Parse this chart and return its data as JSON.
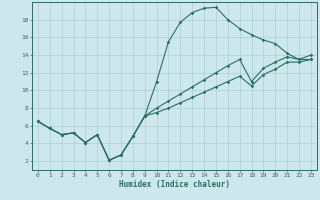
{
  "xlabel": "Humidex (Indice chaleur)",
  "xlim": [
    -0.5,
    23.5
  ],
  "ylim": [
    1.0,
    20.0
  ],
  "xticks": [
    0,
    1,
    2,
    3,
    4,
    5,
    6,
    7,
    8,
    9,
    10,
    11,
    12,
    13,
    14,
    15,
    16,
    17,
    18,
    19,
    20,
    21,
    22,
    23
  ],
  "yticks": [
    2,
    4,
    6,
    8,
    10,
    12,
    14,
    16,
    18
  ],
  "bg_color": "#cce8ed",
  "grid_color": "#aacfd5",
  "line_color": "#2a6e65",
  "line1_x": [
    0,
    1,
    2,
    3,
    4,
    5,
    6,
    7,
    8,
    9,
    10,
    11,
    12,
    13,
    14,
    15,
    16,
    17,
    18,
    19,
    20,
    21,
    22,
    23
  ],
  "line1_y": [
    6.5,
    5.7,
    5.0,
    5.2,
    4.1,
    5.0,
    2.1,
    2.7,
    4.8,
    7.1,
    11.0,
    15.5,
    17.7,
    18.8,
    19.3,
    19.4,
    18.0,
    17.0,
    16.3,
    15.7,
    15.3,
    14.2,
    13.5,
    13.5
  ],
  "line2_x": [
    0,
    1,
    2,
    3,
    4,
    5,
    6,
    7,
    8,
    9,
    10,
    11,
    12,
    13,
    14,
    15,
    16,
    17,
    18,
    19,
    20,
    21,
    22,
    23
  ],
  "line2_y": [
    6.5,
    5.7,
    5.0,
    5.2,
    4.1,
    5.0,
    2.1,
    2.7,
    4.8,
    7.1,
    8.0,
    8.8,
    9.6,
    10.4,
    11.2,
    12.0,
    12.8,
    13.5,
    11.0,
    12.5,
    13.2,
    13.8,
    13.5,
    14.0
  ],
  "line3_x": [
    0,
    1,
    2,
    3,
    4,
    5,
    6,
    7,
    8,
    9,
    10,
    11,
    12,
    13,
    14,
    15,
    16,
    17,
    18,
    19,
    20,
    21,
    22,
    23
  ],
  "line3_y": [
    6.5,
    5.7,
    5.0,
    5.2,
    4.1,
    5.0,
    2.1,
    2.7,
    4.8,
    7.1,
    7.5,
    8.0,
    8.6,
    9.2,
    9.8,
    10.4,
    11.0,
    11.6,
    10.5,
    11.8,
    12.4,
    13.2,
    13.2,
    13.5
  ]
}
